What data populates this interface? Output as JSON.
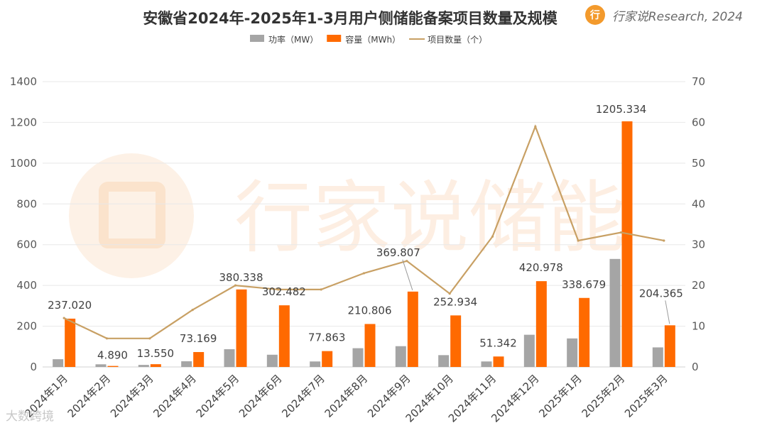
{
  "brand": {
    "logo_glyph": "行",
    "text": "行家说Research, 2024"
  },
  "watermark": {
    "center": "行家说储能",
    "bottom_left": "大数跨境"
  },
  "chart_data": {
    "type": "bar",
    "title": "安徽省2024年-2025年1-3月用户侧储能备案项目数量及规模",
    "categories": [
      "2024年1月",
      "2024年2月",
      "2024年3月",
      "2024年4月",
      "2024年5月",
      "2024年6月",
      "2024年7月",
      "2024年8月",
      "2024年9月",
      "2024年10月",
      "2024年11月",
      "2024年12月",
      "2025年1月",
      "2025年2月",
      "2025年3月"
    ],
    "series": [
      {
        "name": "功率（MW）",
        "kind": "bar",
        "axis": "left",
        "color": "#a5a5a5",
        "values": [
          38,
          13,
          10,
          28,
          87,
          60,
          27,
          92,
          102,
          58,
          27,
          158,
          140,
          530,
          96
        ]
      },
      {
        "name": "容量（MWh）",
        "kind": "bar",
        "axis": "left",
        "color": "#ff6a00",
        "values": [
          237.02,
          4.89,
          13.55,
          73.169,
          380.338,
          302.482,
          77.863,
          210.806,
          369.807,
          252.934,
          51.342,
          420.978,
          338.679,
          1205.334,
          204.365
        ],
        "labels": [
          "237.020",
          "4.890",
          "13.550",
          "73.169",
          "380.338",
          "302.482",
          "77.863",
          "210.806",
          "369.807",
          "252.934",
          "51.342",
          "420.978",
          "338.679",
          "1205.334",
          "204.365"
        ]
      },
      {
        "name": "项目数量（个）",
        "kind": "line",
        "axis": "right",
        "color": "#c8a064",
        "values": [
          12,
          7,
          7,
          14,
          20,
          19,
          19,
          23,
          26,
          18,
          32,
          59,
          31,
          33,
          31
        ]
      }
    ],
    "y_left": {
      "min": 0,
      "max": 1400,
      "ticks": [
        "0",
        "200",
        "400",
        "600",
        "800",
        "1000",
        "1200",
        "1400"
      ]
    },
    "y_right": {
      "min": 0,
      "max": 70,
      "ticks": [
        "0",
        "10",
        "20",
        "30",
        "40",
        "50",
        "60",
        "70"
      ]
    },
    "grid": true,
    "legend": "top"
  }
}
